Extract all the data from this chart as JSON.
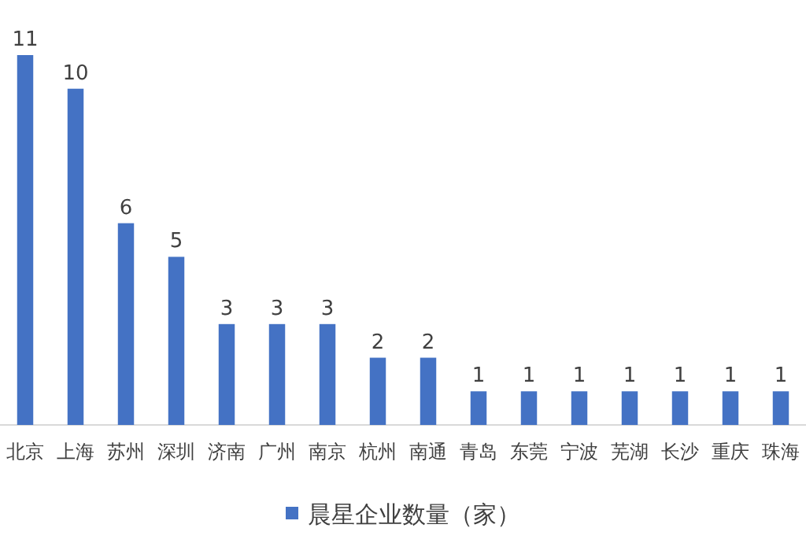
{
  "chart_data": {
    "type": "bar",
    "categories": [
      "北京",
      "上海",
      "苏州",
      "深圳",
      "济南",
      "广州",
      "南京",
      "杭州",
      "南通",
      "青岛",
      "东莞",
      "宁波",
      "芜湖",
      "长沙",
      "重庆",
      "珠海"
    ],
    "series": [
      {
        "name": "晨星企业数量（家）",
        "color": "#4472c4",
        "values": [
          11,
          10,
          6,
          5,
          3,
          3,
          3,
          2,
          2,
          1,
          1,
          1,
          1,
          1,
          1,
          1
        ]
      }
    ],
    "data_labels": true,
    "legend": "bottom",
    "grid": false
  }
}
